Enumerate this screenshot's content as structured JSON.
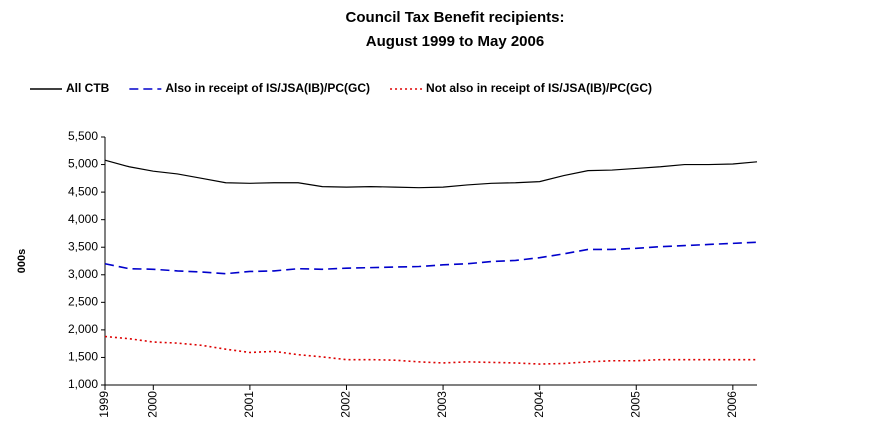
{
  "chart_data": {
    "type": "line",
    "title": [
      "Council Tax Benefit recipients:",
      "August 1999 to May 2006"
    ],
    "y_label": "000s",
    "categories": [
      "1999",
      null,
      "2000",
      null,
      null,
      null,
      "2001",
      null,
      null,
      null,
      "2002",
      null,
      null,
      null,
      "2003",
      null,
      null,
      null,
      "2004",
      null,
      null,
      null,
      "2005",
      null,
      null,
      null,
      "2006",
      null
    ],
    "series": [
      {
        "name": "All CTB",
        "color": "#000000",
        "dash": "solid",
        "values": [
          5080,
          4960,
          4880,
          4830,
          4750,
          4670,
          4660,
          4670,
          4670,
          4600,
          4590,
          4600,
          4590,
          4580,
          4590,
          4630,
          4660,
          4670,
          4690,
          4800,
          4890,
          4900,
          4930,
          4960,
          5000,
          5000,
          5010,
          5050
        ]
      },
      {
        "name": "Also in receipt of IS/JSA(IB)/PC(GC)",
        "color": "#0000cc",
        "dash": "dashed",
        "values": [
          3200,
          3110,
          3100,
          3070,
          3050,
          3020,
          3060,
          3070,
          3110,
          3100,
          3120,
          3130,
          3140,
          3150,
          3180,
          3200,
          3240,
          3260,
          3310,
          3380,
          3460,
          3460,
          3480,
          3510,
          3530,
          3550,
          3570,
          3590
        ]
      },
      {
        "name": "Not also in receipt of IS/JSA(IB)/PC(GC)",
        "color": "#dd0000",
        "dash": "dotted",
        "values": [
          1880,
          1840,
          1780,
          1760,
          1720,
          1650,
          1590,
          1610,
          1550,
          1510,
          1460,
          1460,
          1450,
          1420,
          1400,
          1420,
          1410,
          1400,
          1380,
          1390,
          1420,
          1440,
          1440,
          1460,
          1460,
          1460,
          1460,
          1460
        ]
      }
    ],
    "ylim": [
      1000,
      5500
    ],
    "yticks": [
      {
        "value": 1000,
        "label": "1,000"
      },
      {
        "value": 1500,
        "label": "1,500"
      },
      {
        "value": 2000,
        "label": "2,000"
      },
      {
        "value": 2500,
        "label": "2,500"
      },
      {
        "value": 3000,
        "label": "3,000"
      },
      {
        "value": 3500,
        "label": "3,500"
      },
      {
        "value": 4000,
        "label": "4,000"
      },
      {
        "value": 4500,
        "label": "4,500"
      },
      {
        "value": 5000,
        "label": "5,000"
      },
      {
        "value": 5500,
        "label": "5,500"
      }
    ],
    "grid": false,
    "legend": "top"
  }
}
